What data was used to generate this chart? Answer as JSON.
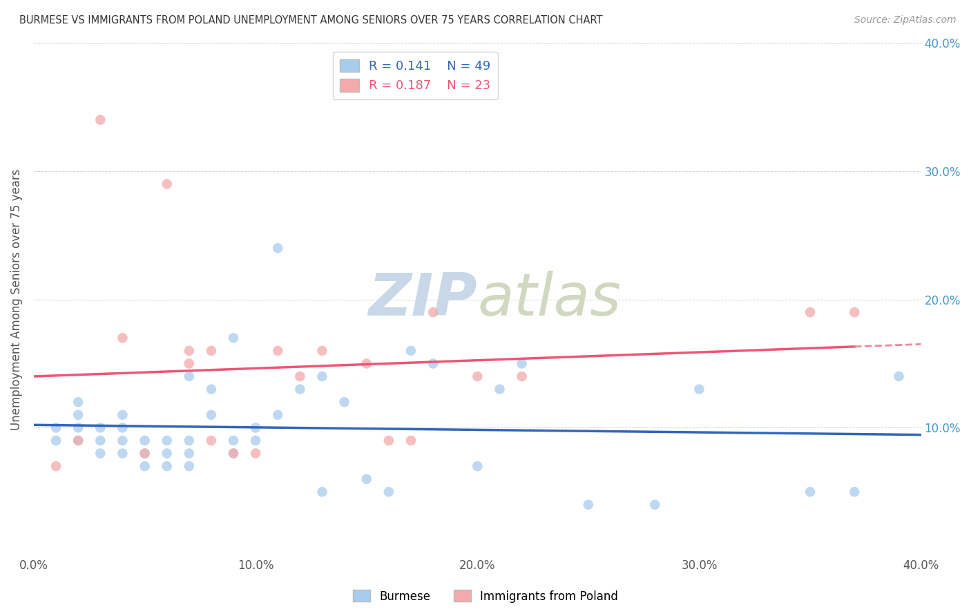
{
  "title": "BURMESE VS IMMIGRANTS FROM POLAND UNEMPLOYMENT AMONG SENIORS OVER 75 YEARS CORRELATION CHART",
  "source": "Source: ZipAtlas.com",
  "ylabel": "Unemployment Among Seniors over 75 years",
  "xlim": [
    0.0,
    0.4
  ],
  "ylim": [
    0.0,
    0.4
  ],
  "xticks": [
    0.0,
    0.1,
    0.2,
    0.3,
    0.4
  ],
  "yticks": [
    0.0,
    0.1,
    0.2,
    0.3,
    0.4
  ],
  "xtick_labels": [
    "0.0%",
    "10.0%",
    "20.0%",
    "30.0%",
    "40.0%"
  ],
  "ytick_labels_right": [
    "",
    "10.0%",
    "20.0%",
    "30.0%",
    "40.0%"
  ],
  "burmese_R": 0.141,
  "burmese_N": 49,
  "poland_R": 0.187,
  "poland_N": 23,
  "burmese_color": "#A8CCEE",
  "poland_color": "#F4AAAA",
  "burmese_line_color": "#3366BB",
  "poland_line_color": "#EE5577",
  "poland_line_dash_color": "#EE8899",
  "background_color": "#FFFFFF",
  "watermark_color": "#C8D8E8",
  "legend_labels": [
    "Burmese",
    "Immigrants from Poland"
  ],
  "burmese_x": [
    0.01,
    0.01,
    0.02,
    0.02,
    0.02,
    0.02,
    0.03,
    0.03,
    0.03,
    0.04,
    0.04,
    0.04,
    0.04,
    0.05,
    0.05,
    0.05,
    0.06,
    0.06,
    0.06,
    0.07,
    0.07,
    0.07,
    0.07,
    0.08,
    0.08,
    0.09,
    0.09,
    0.09,
    0.1,
    0.1,
    0.11,
    0.11,
    0.12,
    0.13,
    0.13,
    0.14,
    0.15,
    0.16,
    0.17,
    0.18,
    0.2,
    0.21,
    0.22,
    0.25,
    0.28,
    0.3,
    0.35,
    0.37,
    0.39
  ],
  "burmese_y": [
    0.09,
    0.1,
    0.09,
    0.1,
    0.11,
    0.12,
    0.08,
    0.09,
    0.1,
    0.08,
    0.09,
    0.1,
    0.11,
    0.07,
    0.08,
    0.09,
    0.07,
    0.08,
    0.09,
    0.07,
    0.08,
    0.09,
    0.14,
    0.11,
    0.13,
    0.08,
    0.09,
    0.17,
    0.09,
    0.1,
    0.11,
    0.24,
    0.13,
    0.14,
    0.05,
    0.12,
    0.06,
    0.05,
    0.16,
    0.15,
    0.07,
    0.13,
    0.15,
    0.04,
    0.04,
    0.13,
    0.05,
    0.05,
    0.14
  ],
  "poland_x": [
    0.01,
    0.02,
    0.03,
    0.04,
    0.05,
    0.06,
    0.07,
    0.07,
    0.08,
    0.08,
    0.09,
    0.1,
    0.11,
    0.12,
    0.13,
    0.15,
    0.16,
    0.17,
    0.18,
    0.2,
    0.22,
    0.35,
    0.37
  ],
  "poland_y": [
    0.07,
    0.09,
    0.34,
    0.17,
    0.08,
    0.29,
    0.15,
    0.16,
    0.09,
    0.16,
    0.08,
    0.08,
    0.16,
    0.14,
    0.16,
    0.15,
    0.09,
    0.09,
    0.19,
    0.14,
    0.14,
    0.19,
    0.19
  ]
}
